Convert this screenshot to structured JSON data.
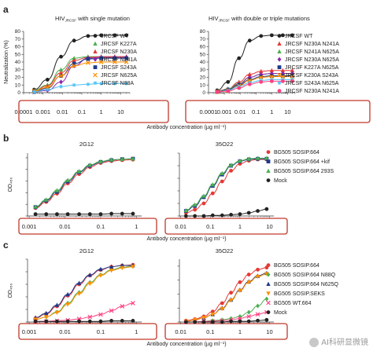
{
  "figure": {
    "watermark": "AI科研显微镜"
  },
  "chart_data": [
    {
      "id": "a-left",
      "type": "line",
      "panel_label": "a",
      "title": "HIV_JRCSF with single mutation",
      "title_prefix": "HIV",
      "title_sub": "JRCSF",
      "title_rest": " with single mutation",
      "ylabel": "Neutralization (%)",
      "xlabel": "",
      "xscale": "log",
      "xlim": [
        0.0001,
        30
      ],
      "ylim": [
        0,
        80
      ],
      "xticks": [
        0.0001,
        0.001,
        0.01,
        0.1,
        1,
        10
      ],
      "xtick_labels": [
        "0.0001",
        "0.001",
        "0.01",
        "0.1",
        "1",
        "10"
      ],
      "yticks": [
        0,
        10,
        20,
        30,
        40,
        50,
        60,
        70,
        80
      ],
      "ytick_labels": [
        "0",
        "10",
        "20",
        "30",
        "40",
        "50",
        "60",
        "70",
        "80"
      ],
      "x": [
        0.00035,
        0.0017,
        0.0085,
        0.04,
        0.21,
        1.0,
        5.0,
        20
      ],
      "series": [
        {
          "name": "JRCSF WT",
          "color": "#222222",
          "marker": "circle",
          "values": [
            4,
            17,
            47,
            68,
            74,
            75,
            75,
            75
          ]
        },
        {
          "name": "JRCSF K227A",
          "color": "#4caf50",
          "marker": "triangle",
          "values": [
            3,
            10,
            30,
            45,
            47,
            47,
            47,
            47
          ]
        },
        {
          "name": "JRCSF N230A",
          "color": "#e53935",
          "marker": "triangle",
          "values": [
            2,
            9,
            26,
            42,
            46,
            47,
            47,
            47
          ]
        },
        {
          "name": "JRCSF N241A",
          "color": "#8e24aa",
          "marker": "diamond",
          "values": [
            1,
            3,
            14,
            35,
            45,
            46,
            46,
            46
          ]
        },
        {
          "name": "JRCSF S243A",
          "color": "#1e3a8a",
          "marker": "square",
          "values": [
            1,
            6,
            22,
            38,
            44,
            45,
            45,
            45
          ]
        },
        {
          "name": "JRCSF N625A",
          "color": "#ff8f00",
          "marker": "x",
          "values": [
            2,
            7,
            22,
            35,
            39,
            40,
            40,
            40
          ]
        },
        {
          "name": "JRCSF N88A",
          "color": "#4fc3f7",
          "marker": "asterisk",
          "values": [
            1,
            4,
            8,
            10,
            11,
            12,
            12,
            12
          ]
        }
      ]
    },
    {
      "id": "a-right",
      "type": "line",
      "panel_label": "",
      "title": "HIV_JRCSF with double or triple mutations",
      "title_prefix": "HIV",
      "title_sub": "JRCSF",
      "title_rest": " with double or triple mutations",
      "ylabel": "",
      "xlabel": "",
      "xscale": "log",
      "xlim": [
        0.0001,
        30
      ],
      "ylim": [
        0,
        80
      ],
      "xticks": [
        0.0001,
        0.001,
        0.01,
        0.1,
        1,
        10
      ],
      "xtick_labels": [
        "0.0001",
        "0.001",
        "0.01",
        "0.1",
        "1",
        "10"
      ],
      "yticks": [
        0,
        10,
        20,
        30,
        40,
        50,
        60,
        70,
        80
      ],
      "ytick_labels": [
        "0",
        "10",
        "20",
        "30",
        "40",
        "50",
        "60",
        "70",
        "80"
      ],
      "x": [
        0.00035,
        0.0017,
        0.0085,
        0.04,
        0.21,
        1.0,
        5.0,
        20
      ],
      "series": [
        {
          "name": "JRCSF WT",
          "color": "#222222",
          "marker": "circle",
          "values": [
            3,
            14,
            45,
            68,
            74,
            75,
            75,
            75
          ]
        },
        {
          "name": "JRCSF N230A N241A",
          "color": "#e53935",
          "marker": "triangle",
          "values": [
            2,
            5,
            14,
            24,
            28,
            29,
            29,
            29
          ]
        },
        {
          "name": "JRCSF N241A N625A",
          "color": "#4caf50",
          "marker": "triangle",
          "values": [
            1,
            5,
            12,
            20,
            24,
            25,
            25,
            25
          ]
        },
        {
          "name": "JRCSF N230A N625A",
          "color": "#8e24aa",
          "marker": "diamond",
          "values": [
            1,
            4,
            11,
            20,
            24,
            25,
            25,
            25
          ]
        },
        {
          "name": "JRCSF K227A N625A",
          "color": "#1e3a8a",
          "marker": "square",
          "values": [
            1,
            4,
            10,
            17,
            21,
            22,
            22,
            22
          ]
        },
        {
          "name": "JRCSF K230A S243A",
          "color": "#ff8f00",
          "marker": "x",
          "values": [
            1,
            3,
            9,
            16,
            20,
            21,
            21,
            21
          ]
        },
        {
          "name": "JRCSF S243A N625A",
          "color": "#4fc3f7",
          "marker": "asterisk",
          "values": [
            1,
            3,
            8,
            13,
            16,
            17,
            17,
            17
          ]
        },
        {
          "name": "JRCSF N230A N241A",
          "color": "#ff4081",
          "marker": "circle",
          "values": [
            1,
            2,
            6,
            11,
            14,
            15,
            15,
            15
          ]
        }
      ],
      "shared_xlabel": "Antibody concentration (µg ml⁻¹)"
    },
    {
      "id": "b-left",
      "type": "line",
      "panel_label": "b",
      "title": "2G12",
      "ylabel": "OD₄₅₀",
      "xlabel": "",
      "xscale": "log",
      "xlim": [
        0.0009,
        1.4
      ],
      "ylim": [
        0,
        1.35
      ],
      "xticks": [
        0.001,
        0.01,
        0.1,
        1
      ],
      "xtick_labels": [
        "0.001",
        "0.01",
        "0.1",
        "1"
      ],
      "yticks": [
        0,
        0.25,
        0.5,
        0.75,
        1.0,
        1.25
      ],
      "ytick_labels": [],
      "x": [
        0.0015,
        0.003,
        0.006,
        0.012,
        0.025,
        0.05,
        0.1,
        0.2,
        0.4,
        0.8
      ],
      "series": [
        {
          "name": "BG505 SOSIP.664",
          "color": "#e53935",
          "marker": "circle",
          "values": [
            0.17,
            0.3,
            0.48,
            0.7,
            0.9,
            1.05,
            1.14,
            1.18,
            1.2,
            1.21
          ]
        },
        {
          "name": "BG505 SOSIP.664 +kif",
          "color": "#1e3a8a",
          "marker": "square",
          "values": [
            0.19,
            0.33,
            0.52,
            0.74,
            0.94,
            1.08,
            1.16,
            1.2,
            1.22,
            1.23
          ]
        },
        {
          "name": "BG505 SOSIP.664 293S",
          "color": "#4caf50",
          "marker": "triangle",
          "values": [
            0.2,
            0.35,
            0.55,
            0.77,
            0.96,
            1.1,
            1.17,
            1.21,
            1.22,
            1.23
          ]
        },
        {
          "name": "Mock",
          "color": "#222222",
          "marker": "circle",
          "values": [
            0.04,
            0.04,
            0.04,
            0.04,
            0.04,
            0.04,
            0.04,
            0.05,
            0.05,
            0.05
          ]
        }
      ]
    },
    {
      "id": "b-right",
      "type": "line",
      "panel_label": "",
      "title": "35O22",
      "ylabel": "",
      "xlabel": "",
      "xscale": "log",
      "xlim": [
        0.009,
        14
      ],
      "ylim": [
        0,
        1.0
      ],
      "xticks": [
        0.01,
        0.1,
        1,
        10
      ],
      "xtick_labels": [
        "0.01",
        "0.1",
        "1",
        "10"
      ],
      "yticks": [
        0,
        0.2,
        0.4,
        0.6,
        0.8,
        1.0
      ],
      "ytick_labels": [],
      "x": [
        0.015,
        0.03,
        0.06,
        0.12,
        0.25,
        0.5,
        1.0,
        2.0,
        4.0,
        8.0
      ],
      "series": [
        {
          "name": "BG505 SOSIP.664",
          "color": "#e53935",
          "marker": "circle",
          "values": [
            0.05,
            0.1,
            0.2,
            0.36,
            0.55,
            0.72,
            0.83,
            0.88,
            0.9,
            0.9
          ]
        },
        {
          "name": "BG505 SOSIP.664 +kif",
          "color": "#1e3a8a",
          "marker": "square",
          "values": [
            0.08,
            0.16,
            0.3,
            0.48,
            0.66,
            0.8,
            0.87,
            0.9,
            0.91,
            0.91
          ]
        },
        {
          "name": "BG505 SOSIP.664 293S",
          "color": "#4caf50",
          "marker": "triangle",
          "values": [
            0.09,
            0.18,
            0.32,
            0.5,
            0.68,
            0.81,
            0.88,
            0.91,
            0.92,
            0.92
          ]
        },
        {
          "name": "Mock",
          "color": "#222222",
          "marker": "circle",
          "values": [
            0.0,
            0.0,
            0.0,
            0.01,
            0.01,
            0.02,
            0.03,
            0.05,
            0.08,
            0.11
          ]
        }
      ],
      "shared_xlabel": "Antibody concentration (µg ml⁻¹)"
    },
    {
      "id": "c-left",
      "type": "line",
      "panel_label": "c",
      "title": "2G12",
      "ylabel": "OD₄₅₀",
      "xlabel": "",
      "xscale": "log",
      "xlim": [
        0.0009,
        1.4
      ],
      "ylim": [
        0,
        1.0
      ],
      "xticks": [
        0.001,
        0.01,
        0.1,
        1
      ],
      "xtick_labels": [
        "0.001",
        "0.01",
        "0.1",
        "1"
      ],
      "yticks": [
        0,
        0.2,
        0.4,
        0.6,
        0.8,
        1.0
      ],
      "ytick_labels": [],
      "x": [
        0.0015,
        0.003,
        0.006,
        0.012,
        0.025,
        0.05,
        0.1,
        0.2,
        0.4,
        0.8
      ],
      "series": [
        {
          "name": "BG505 SOSIP.664",
          "color": "#e53935",
          "marker": "circle",
          "values": [
            0.06,
            0.13,
            0.25,
            0.42,
            0.6,
            0.74,
            0.83,
            0.88,
            0.9,
            0.91
          ]
        },
        {
          "name": "BG505 SOSIP.664 N88Q",
          "color": "#4caf50",
          "marker": "diamond",
          "values": [
            0.04,
            0.08,
            0.16,
            0.3,
            0.47,
            0.63,
            0.75,
            0.83,
            0.87,
            0.89
          ]
        },
        {
          "name": "BG505 SOSIP.664 N625Q",
          "color": "#1e3a8a",
          "marker": "triangle",
          "values": [
            0.07,
            0.14,
            0.27,
            0.44,
            0.62,
            0.75,
            0.84,
            0.88,
            0.9,
            0.9
          ]
        },
        {
          "name": "BG505 SOSIP.SEKS",
          "color": "#ff8f00",
          "marker": "triangle-down",
          "values": [
            0.04,
            0.08,
            0.15,
            0.28,
            0.45,
            0.61,
            0.74,
            0.82,
            0.86,
            0.88
          ]
        },
        {
          "name": "BG505 WT.664",
          "color": "#ff4081",
          "marker": "x",
          "values": [
            0.01,
            0.01,
            0.02,
            0.03,
            0.05,
            0.08,
            0.12,
            0.18,
            0.25,
            0.3
          ]
        },
        {
          "name": "Mock",
          "color": "#222222",
          "marker": "circle",
          "values": [
            0.01,
            0.01,
            0.01,
            0.01,
            0.01,
            0.01,
            0.01,
            0.02,
            0.02,
            0.02
          ]
        }
      ]
    },
    {
      "id": "c-right",
      "type": "line",
      "panel_label": "",
      "title": "35O22",
      "ylabel": "",
      "xlabel": "",
      "xscale": "log",
      "xlim": [
        0.009,
        14
      ],
      "ylim": [
        0,
        0.9
      ],
      "xticks": [
        0.01,
        0.1,
        1,
        10
      ],
      "xtick_labels": [
        "0.01",
        "0.1",
        "1",
        "10"
      ],
      "yticks": [
        0,
        0.2,
        0.4,
        0.6,
        0.8
      ],
      "ytick_labels": [],
      "x": [
        0.015,
        0.03,
        0.06,
        0.12,
        0.25,
        0.5,
        1.0,
        2.0,
        4.0,
        8.0
      ],
      "series": [
        {
          "name": "BG505 SOSIP.664",
          "color": "#e53935",
          "marker": "circle",
          "values": [
            0.02,
            0.04,
            0.08,
            0.15,
            0.27,
            0.42,
            0.57,
            0.68,
            0.75,
            0.78
          ]
        },
        {
          "name": "BG505 SOSIP.664 N88Q",
          "color": "#4caf50",
          "marker": "diamond",
          "values": [
            0.0,
            0.0,
            0.01,
            0.02,
            0.03,
            0.05,
            0.08,
            0.14,
            0.23,
            0.33
          ]
        },
        {
          "name": "BG505 SOSIP.664 N625Q",
          "color": "#1e3a8a",
          "marker": "triangle",
          "values": [
            0.01,
            0.03,
            0.06,
            0.11,
            0.2,
            0.32,
            0.46,
            0.58,
            0.66,
            0.7
          ]
        },
        {
          "name": "BG505 SOSIP.SEKS",
          "color": "#ff8f00",
          "marker": "triangle-down",
          "values": [
            0.01,
            0.03,
            0.06,
            0.11,
            0.19,
            0.31,
            0.45,
            0.57,
            0.65,
            0.69
          ]
        },
        {
          "name": "BG505 WT.664",
          "color": "#ff4081",
          "marker": "x",
          "values": [
            0.0,
            0.0,
            0.01,
            0.01,
            0.02,
            0.03,
            0.05,
            0.08,
            0.11,
            0.14
          ]
        },
        {
          "name": "Mock",
          "color": "#222222",
          "marker": "circle",
          "values": [
            0.0,
            0.0,
            0.0,
            0.0,
            0.0,
            0.01,
            0.01,
            0.01,
            0.02,
            0.03
          ]
        }
      ],
      "shared_xlabel": "Antibody concentration (µg ml⁻¹)"
    }
  ]
}
